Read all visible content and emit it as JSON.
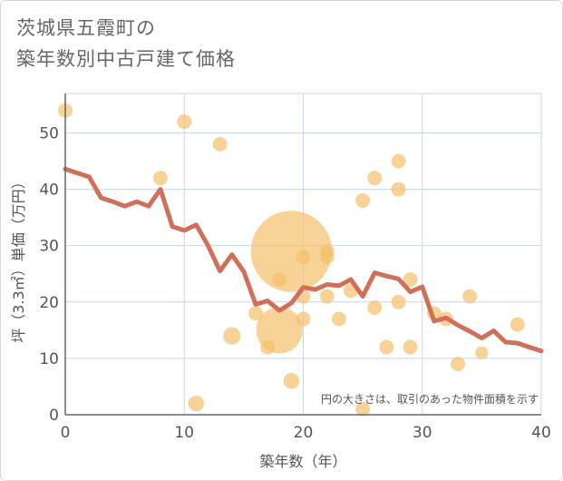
{
  "title": {
    "line1": "茨城県五霞町の",
    "line2": "築年数別中古戸建て価格"
  },
  "chart_data": {
    "type": "scatter",
    "xlabel": "築年数（年）",
    "ylabel": "坪（3.3㎡）単価（万円）",
    "xlim": [
      0,
      40
    ],
    "ylim": [
      0,
      57
    ],
    "xticks": [
      0,
      10,
      20,
      30,
      40
    ],
    "yticks": [
      0,
      10,
      20,
      30,
      40,
      50
    ],
    "grid": true,
    "note": "円の大きさは、取引のあった物件面積を示す",
    "colors": {
      "bubble": "#f5c06b",
      "line": "#d0705a",
      "grid": "#c9d6e6",
      "axis": "#666666"
    },
    "points": [
      {
        "x": 0,
        "y": 54,
        "size": 1
      },
      {
        "x": 8,
        "y": 42,
        "size": 1
      },
      {
        "x": 10,
        "y": 52,
        "size": 1
      },
      {
        "x": 11,
        "y": 2,
        "size": 1.1
      },
      {
        "x": 13,
        "y": 48,
        "size": 1
      },
      {
        "x": 14,
        "y": 14,
        "size": 1.2
      },
      {
        "x": 16,
        "y": 18,
        "size": 1
      },
      {
        "x": 17,
        "y": 12,
        "size": 1
      },
      {
        "x": 18,
        "y": 24,
        "size": 1
      },
      {
        "x": 18,
        "y": 15,
        "size": 3.2
      },
      {
        "x": 19,
        "y": 29,
        "size": 5.6
      },
      {
        "x": 19,
        "y": 6,
        "size": 1.1
      },
      {
        "x": 20,
        "y": 28,
        "size": 1
      },
      {
        "x": 20,
        "y": 21,
        "size": 1
      },
      {
        "x": 20,
        "y": 17,
        "size": 1
      },
      {
        "x": 22,
        "y": 29,
        "size": 1
      },
      {
        "x": 22,
        "y": 28,
        "size": 1
      },
      {
        "x": 22,
        "y": 21,
        "size": 1
      },
      {
        "x": 23,
        "y": 17,
        "size": 1
      },
      {
        "x": 24,
        "y": 22,
        "size": 1
      },
      {
        "x": 25,
        "y": 38,
        "size": 1
      },
      {
        "x": 25,
        "y": 1,
        "size": 1
      },
      {
        "x": 26,
        "y": 42,
        "size": 1
      },
      {
        "x": 26,
        "y": 19,
        "size": 1
      },
      {
        "x": 27,
        "y": 12,
        "size": 1
      },
      {
        "x": 28,
        "y": 45,
        "size": 1
      },
      {
        "x": 28,
        "y": 40,
        "size": 1
      },
      {
        "x": 28,
        "y": 20,
        "size": 1
      },
      {
        "x": 29,
        "y": 24,
        "size": 1
      },
      {
        "x": 29,
        "y": 12,
        "size": 1
      },
      {
        "x": 31,
        "y": 18,
        "size": 1
      },
      {
        "x": 32,
        "y": 17,
        "size": 1
      },
      {
        "x": 33,
        "y": 9,
        "size": 1
      },
      {
        "x": 34,
        "y": 21,
        "size": 1
      },
      {
        "x": 35,
        "y": 11,
        "size": 0.9
      },
      {
        "x": 38,
        "y": 16,
        "size": 1
      }
    ],
    "trend": {
      "x": [
        0,
        1,
        2,
        3,
        4,
        5,
        6,
        7,
        8,
        9,
        10,
        11,
        12,
        13,
        14,
        15,
        16,
        17,
        18,
        19,
        20,
        21,
        22,
        23,
        24,
        25,
        26,
        27,
        28,
        29,
        30,
        31,
        32,
        33,
        34,
        35,
        36,
        37,
        38,
        39,
        40
      ],
      "y": [
        43.6,
        42.9,
        42.2,
        38.5,
        37.8,
        37.0,
        37.8,
        37.0,
        40.0,
        33.4,
        32.7,
        33.7,
        30.0,
        25.5,
        28.4,
        25.4,
        19.6,
        20.2,
        18.5,
        19.8,
        22.6,
        22.2,
        23.1,
        22.9,
        24.0,
        21.0,
        25.2,
        24.6,
        24.1,
        21.8,
        22.7,
        16.6,
        17.2,
        15.9,
        14.8,
        13.6,
        14.9,
        12.9,
        12.7,
        12.0,
        11.3
      ]
    }
  }
}
